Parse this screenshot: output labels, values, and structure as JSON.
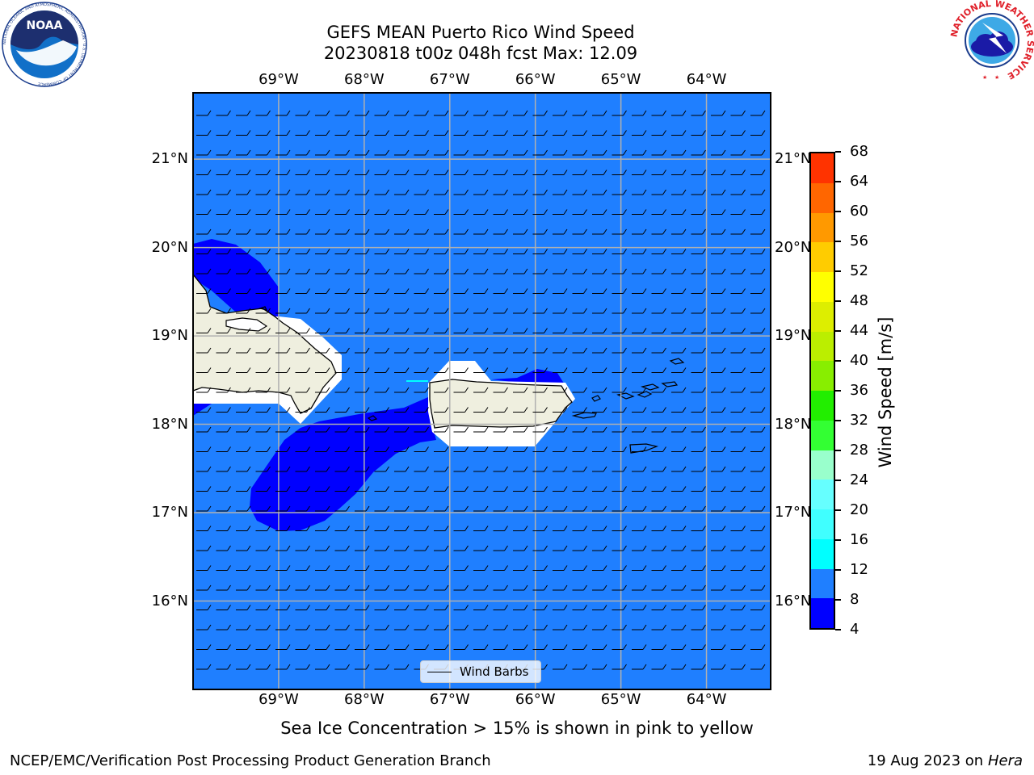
{
  "title": {
    "line1": "GEFS MEAN Puerto Rico Wind Speed",
    "line2": "20230818 t00z 048h fcst   Max: 12.09"
  },
  "logos": {
    "noaa_text": "NOAA",
    "noaa_ring_text": "NATIONAL OCEANIC AND ATMOSPHERIC ADMINISTRATION · U.S. DEPARTMENT OF COMMERCE",
    "nws_ring_text": "NATIONAL WEATHER SERVICE"
  },
  "map": {
    "extent": {
      "lon_min": -70.0,
      "lon_max": -63.25,
      "lat_min": 15.0,
      "lat_max": 21.75
    },
    "lon_ticks": [
      -69,
      -68,
      -67,
      -66,
      -65,
      -64
    ],
    "lon_labels": [
      "69°W",
      "68°W",
      "67°W",
      "66°W",
      "65°W",
      "64°W"
    ],
    "lat_ticks": [
      16,
      17,
      18,
      19,
      20,
      21
    ],
    "lat_labels": [
      "16°N",
      "17°N",
      "18°N",
      "19°N",
      "20°N",
      "21°N"
    ],
    "gridlines": true,
    "background_fill": "#1f7fff",
    "low_wind_fill": "#0000ff",
    "land_fill": "#efefdf",
    "wind": {
      "direction": "easterly",
      "typical_speed_ms": 9
    }
  },
  "colorbar": {
    "label": "Wind Speed [m/s]",
    "ticks": [
      "4",
      "8",
      "12",
      "16",
      "20",
      "24",
      "28",
      "32",
      "36",
      "40",
      "44",
      "48",
      "52",
      "56",
      "60",
      "64",
      "68"
    ],
    "colors": [
      "#0000ff",
      "#1f7fff",
      "#00ffff",
      "#40ffff",
      "#66ffff",
      "#99ffcc",
      "#33ff33",
      "#22ee00",
      "#88ee00",
      "#bbee00",
      "#ddee00",
      "#ffff00",
      "#ffcc00",
      "#ff9900",
      "#ff6600",
      "#ff3300",
      "#ff0000"
    ]
  },
  "legend": {
    "label": "Wind Barbs"
  },
  "footnote": "Sea Ice Concentration > 15% is shown in pink to yellow",
  "credit": "NCEP/EMC/Verification Post Processing Product Generation Branch",
  "run_date": {
    "date": "19 Aug 2023 on",
    "machine": "Hera"
  }
}
